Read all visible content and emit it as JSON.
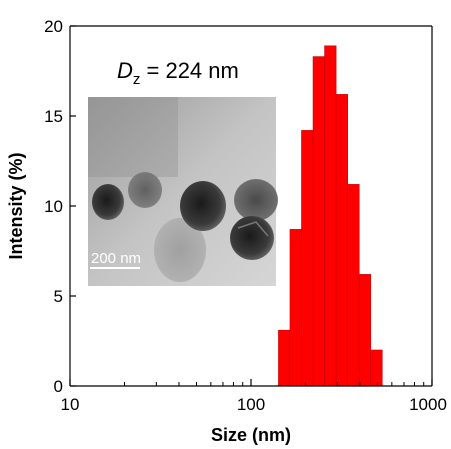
{
  "chart_data": {
    "type": "bar",
    "xlabel": "Size (nm)",
    "ylabel": "Intensity (%)",
    "xscale": "log",
    "xlim": [
      10,
      1000
    ],
    "ylim": [
      0,
      20
    ],
    "xticks": [
      10,
      100,
      1000
    ],
    "xtick_labels": [
      "10",
      "100",
      "1000"
    ],
    "yticks": [
      0,
      5,
      10,
      15,
      20
    ],
    "ytick_labels": [
      "0",
      "5",
      "10",
      "15",
      "20"
    ],
    "bar_color": "#ff0000",
    "bin_edges": [
      141.8,
      164.2,
      190.1,
      220.2,
      255.0,
      295.3,
      342.0,
      396.1,
      458.7,
      531.2
    ],
    "values": [
      3.1,
      8.7,
      14.2,
      18.3,
      18.9,
      16.2,
      11.2,
      6.2,
      2.0
    ],
    "annotation": {
      "symbol": "D",
      "subscript": "z",
      "text": " = 224 nm"
    },
    "inset": {
      "scale_label": "200 nm"
    },
    "grid": false
  }
}
